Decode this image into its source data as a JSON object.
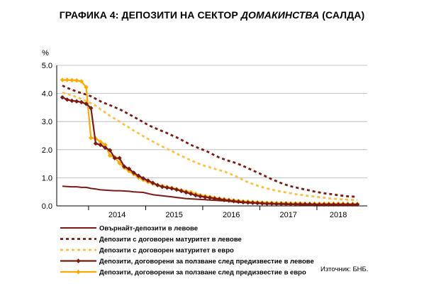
{
  "title": {
    "part1": "ГРАФИКА 4: ДЕПОЗИТИ НА СЕКТОР ",
    "italic": "ДОМАКИНСТВА",
    "part2": " (САЛДА)"
  },
  "source": "Източник: БНБ.",
  "colors": {
    "dark_red": "#7b1a13",
    "orange": "#ffa800",
    "light_orange": "#ffbf40"
  },
  "chart_data": {
    "type": "line",
    "yunit": "%",
    "ylim": [
      0,
      5
    ],
    "yticks": [
      "0.0",
      "1.0",
      "2.0",
      "3.0",
      "4.0",
      "5.0"
    ],
    "x_start": "2013-07",
    "x_end": "2018-09",
    "xticks": [
      "2014",
      "2015",
      "2016",
      "2017",
      "2018"
    ],
    "grid": "horizontal",
    "legend_position": "bottom",
    "series": [
      {
        "name": "Овърнайт-депозити в левове",
        "style": "solid",
        "color": "#7b1a13",
        "markers": false,
        "values": [
          0.7,
          0.69,
          0.68,
          0.68,
          0.66,
          0.66,
          0.62,
          0.6,
          0.57,
          0.56,
          0.55,
          0.54,
          0.54,
          0.53,
          0.52,
          0.5,
          0.49,
          0.48,
          0.44,
          0.4,
          0.38,
          0.36,
          0.34,
          0.32,
          0.3,
          0.28,
          0.26,
          0.25,
          0.24,
          0.23,
          0.22,
          0.21,
          0.2,
          0.19,
          0.18,
          0.17,
          0.15,
          0.13,
          0.12,
          0.11,
          0.1,
          0.09,
          0.08,
          0.07,
          0.07,
          0.06,
          0.06,
          0.05,
          0.05,
          0.05,
          0.04,
          0.04,
          0.04,
          0.04,
          0.03,
          0.03,
          0.03,
          0.03,
          0.03,
          0.03,
          0.03,
          0.03,
          0.03
        ]
      },
      {
        "name": "Депозити с договорен матуритет в левове",
        "style": "dotted",
        "color": "#7b1a13",
        "markers": false,
        "values": [
          4.28,
          4.2,
          4.13,
          4.07,
          4.01,
          3.96,
          3.9,
          3.81,
          3.72,
          3.65,
          3.58,
          3.51,
          3.44,
          3.35,
          3.26,
          3.17,
          3.07,
          2.98,
          2.88,
          2.8,
          2.73,
          2.66,
          2.59,
          2.51,
          2.44,
          2.35,
          2.26,
          2.17,
          2.1,
          2.03,
          1.97,
          1.89,
          1.8,
          1.72,
          1.66,
          1.6,
          1.55,
          1.49,
          1.42,
          1.34,
          1.26,
          1.19,
          1.11,
          1.03,
          0.95,
          0.88,
          0.81,
          0.75,
          0.7,
          0.66,
          0.62,
          0.58,
          0.55,
          0.51,
          0.48,
          0.45,
          0.43,
          0.41,
          0.38,
          0.36,
          0.34,
          0.33,
          0.32
        ]
      },
      {
        "name": "Депозити с договорен матуритет в евро",
        "style": "dotted",
        "color": "#ffbf40",
        "markers": false,
        "values": [
          4.03,
          3.98,
          3.93,
          3.87,
          3.8,
          3.73,
          3.65,
          3.56,
          3.44,
          3.32,
          3.2,
          3.1,
          3.0,
          2.89,
          2.79,
          2.68,
          2.58,
          2.48,
          2.38,
          2.29,
          2.2,
          2.11,
          2.03,
          1.95,
          1.86,
          1.78,
          1.7,
          1.62,
          1.55,
          1.48,
          1.42,
          1.37,
          1.32,
          1.27,
          1.22,
          1.16,
          1.09,
          1.01,
          0.92,
          0.84,
          0.78,
          0.72,
          0.67,
          0.62,
          0.58,
          0.54,
          0.51,
          0.48,
          0.45,
          0.42,
          0.4,
          0.37,
          0.35,
          0.33,
          0.31,
          0.29,
          0.27,
          0.25,
          0.24,
          0.23,
          0.22,
          0.21,
          0.21
        ]
      },
      {
        "name": "Депозити, договорени за ползване след предизвестие в левове",
        "style": "solid",
        "color": "#7b1a13",
        "markers": true,
        "values": [
          3.86,
          3.78,
          3.74,
          3.72,
          3.69,
          3.63,
          3.48,
          2.22,
          2.17,
          2.07,
          1.98,
          1.7,
          1.7,
          1.4,
          1.32,
          1.18,
          1.07,
          0.98,
          0.9,
          0.82,
          0.74,
          0.68,
          0.65,
          0.62,
          0.58,
          0.53,
          0.48,
          0.43,
          0.38,
          0.34,
          0.31,
          0.29,
          0.26,
          0.24,
          0.21,
          0.19,
          0.17,
          0.15,
          0.13,
          0.12,
          0.11,
          0.1,
          0.09,
          0.08,
          0.08,
          0.07,
          0.07,
          0.07,
          0.06,
          0.06,
          0.06,
          0.06,
          0.06,
          0.05,
          0.05,
          0.05,
          0.05,
          0.05,
          0.05,
          0.05,
          0.05,
          0.05,
          0.05
        ]
      },
      {
        "name": "Депозити, договорени за ползване след предизвестие в евро",
        "style": "solid",
        "color": "#ffa800",
        "markers": true,
        "values": [
          4.48,
          4.48,
          4.47,
          4.46,
          4.43,
          4.22,
          2.42,
          2.4,
          2.28,
          2.17,
          1.79,
          1.74,
          1.52,
          1.36,
          1.24,
          1.13,
          1.01,
          0.93,
          0.85,
          0.79,
          0.74,
          0.71,
          0.67,
          0.64,
          0.6,
          0.56,
          0.52,
          0.48,
          0.43,
          0.38,
          0.35,
          0.32,
          0.29,
          0.26,
          0.24,
          0.22,
          0.2,
          0.18,
          0.16,
          0.15,
          0.14,
          0.13,
          0.12,
          0.11,
          0.11,
          0.1,
          0.1,
          0.1,
          0.09,
          0.09,
          0.09,
          0.08,
          0.08,
          0.08,
          0.08,
          0.08,
          0.08,
          0.08,
          0.08,
          0.08,
          0.07,
          0.07,
          0.07
        ]
      }
    ]
  }
}
